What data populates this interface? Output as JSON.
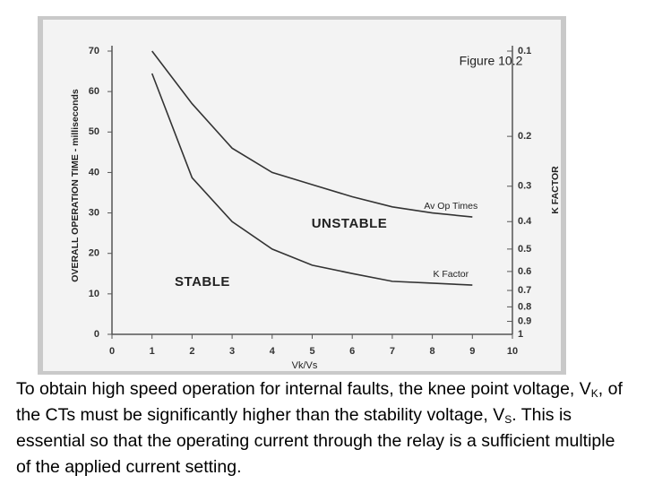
{
  "chart_data": {
    "type": "line",
    "title": "Figure 10.2",
    "x_label": "Vk/Vs",
    "y_label": "OVERALL OPERATION TIME - milliseconds",
    "y2_label": "K FACTOR",
    "x": [
      1,
      2,
      3,
      4,
      5,
      6,
      7,
      8,
      9
    ],
    "series": [
      {
        "name": "Av Op Times",
        "color": "#333333",
        "values": [
          70,
          57,
          46,
          40,
          37,
          34,
          31.5,
          30,
          29
        ]
      },
      {
        "name": "K Factor",
        "color": "#333333",
        "axis": "y2",
        "values": [
          0.12,
          0.28,
          0.4,
          0.5,
          0.57,
          0.61,
          0.65,
          0.66,
          0.67
        ]
      }
    ],
    "annotations": [
      "UNSTABLE",
      "STABLE"
    ],
    "xlim": [
      0,
      10
    ],
    "xticks": [
      0,
      1,
      2,
      3,
      4,
      5,
      6,
      7,
      8,
      9,
      10
    ],
    "ylim": [
      0,
      70
    ],
    "yticks": [
      0,
      10,
      20,
      30,
      40,
      50,
      60,
      70
    ],
    "y2lim": [
      1,
      0.1
    ],
    "y2ticks": [
      0.1,
      0.2,
      0.3,
      0.4,
      0.5,
      0.6,
      0.7,
      0.8,
      0.9,
      1
    ],
    "y2log": true,
    "grid": false
  },
  "caption": [
    "To obtain high speed operation for internal faults, the knee point voltage, V",
    "K",
    ", of the CTs must be significantly higher than the stability voltage, V",
    "S",
    ". This is essential so that the operating current through the relay is a sufficient multiple of the applied current setting."
  ]
}
